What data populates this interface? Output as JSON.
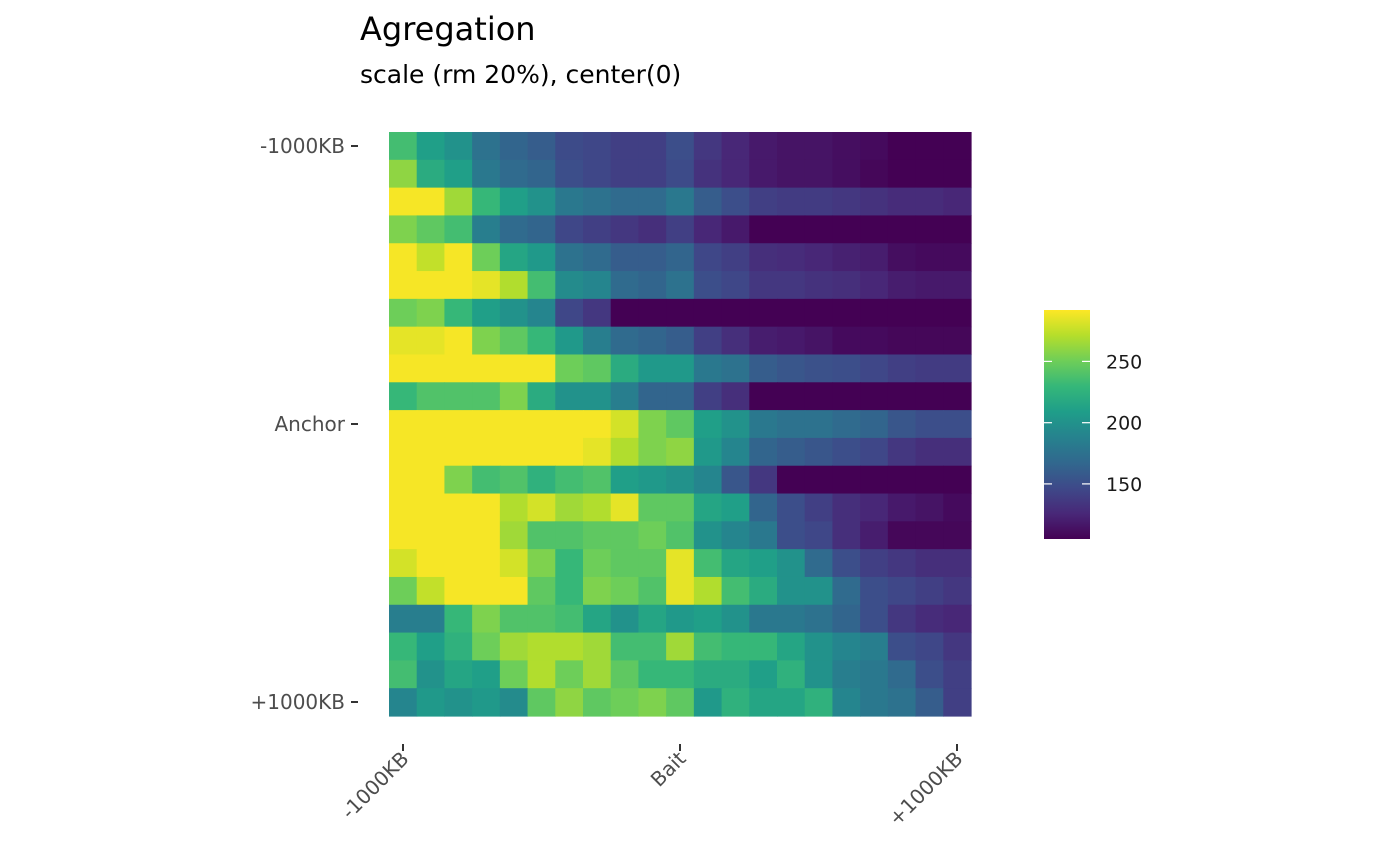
{
  "chart_data": {
    "type": "heatmap",
    "title": "Agregation",
    "subtitle": "scale (rm 20%), center(0)",
    "x_tick_labels": [
      "-1000KB",
      "Bait",
      "+1000KB"
    ],
    "y_tick_labels": [
      "-1000KB",
      "Anchor",
      "+1000KB"
    ],
    "legend": {
      "position": "right",
      "ticks": [
        150,
        200,
        250
      ],
      "min": 105,
      "max": 292
    },
    "colormap": [
      "#440154",
      "#482878",
      "#3e4989",
      "#31688e",
      "#26828e",
      "#1f9e89",
      "#35b779",
      "#6ece58",
      "#b5de2b",
      "#fde725"
    ],
    "grid": false,
    "n_rows": 21,
    "n_cols": 21,
    "values": [
      [
        235,
        210,
        200,
        175,
        165,
        160,
        148,
        145,
        140,
        140,
        150,
        135,
        125,
        118,
        115,
        115,
        112,
        110,
        105,
        105,
        105
      ],
      [
        260,
        220,
        210,
        180,
        170,
        165,
        150,
        145,
        140,
        140,
        148,
        132,
        125,
        118,
        115,
        115,
        112,
        108,
        105,
        105,
        105
      ],
      [
        290,
        290,
        265,
        230,
        210,
        200,
        180,
        175,
        170,
        170,
        180,
        160,
        150,
        140,
        138,
        138,
        135,
        132,
        128,
        128,
        125
      ],
      [
        255,
        245,
        235,
        185,
        170,
        165,
        145,
        140,
        135,
        130,
        140,
        125,
        118,
        105,
        105,
        105,
        105,
        105,
        105,
        105,
        105
      ],
      [
        290,
        275,
        290,
        250,
        215,
        205,
        175,
        170,
        160,
        160,
        165,
        145,
        140,
        130,
        128,
        125,
        122,
        120,
        112,
        110,
        110
      ],
      [
        290,
        290,
        290,
        285,
        270,
        235,
        195,
        190,
        170,
        165,
        175,
        150,
        145,
        135,
        135,
        132,
        130,
        125,
        120,
        118,
        118
      ],
      [
        250,
        255,
        230,
        210,
        200,
        190,
        145,
        135,
        105,
        105,
        105,
        105,
        105,
        105,
        105,
        105,
        105,
        105,
        105,
        105,
        105
      ],
      [
        285,
        285,
        290,
        255,
        245,
        230,
        205,
        185,
        170,
        165,
        160,
        140,
        130,
        120,
        118,
        115,
        110,
        110,
        108,
        108,
        108
      ],
      [
        290,
        290,
        290,
        290,
        290,
        290,
        250,
        245,
        220,
        205,
        205,
        180,
        175,
        160,
        155,
        152,
        150,
        145,
        140,
        138,
        138
      ],
      [
        230,
        240,
        240,
        240,
        255,
        220,
        200,
        200,
        185,
        165,
        165,
        140,
        130,
        105,
        105,
        105,
        105,
        105,
        105,
        105,
        105
      ],
      [
        290,
        290,
        290,
        290,
        290,
        290,
        290,
        290,
        280,
        255,
        245,
        210,
        200,
        180,
        175,
        175,
        170,
        165,
        155,
        150,
        150
      ],
      [
        290,
        290,
        290,
        290,
        290,
        290,
        290,
        285,
        270,
        255,
        260,
        205,
        190,
        165,
        160,
        155,
        150,
        145,
        135,
        130,
        130
      ],
      [
        290,
        290,
        255,
        235,
        240,
        225,
        235,
        240,
        210,
        205,
        200,
        190,
        155,
        135,
        105,
        105,
        105,
        105,
        105,
        105,
        105
      ],
      [
        290,
        290,
        290,
        290,
        270,
        280,
        265,
        270,
        285,
        245,
        245,
        215,
        210,
        165,
        150,
        140,
        130,
        125,
        118,
        115,
        110
      ],
      [
        290,
        290,
        290,
        290,
        265,
        240,
        240,
        245,
        245,
        250,
        240,
        200,
        190,
        180,
        150,
        145,
        130,
        120,
        108,
        108,
        108
      ],
      [
        280,
        290,
        290,
        290,
        280,
        255,
        230,
        250,
        245,
        245,
        285,
        235,
        215,
        210,
        200,
        170,
        150,
        140,
        135,
        130,
        130
      ],
      [
        250,
        275,
        290,
        290,
        290,
        245,
        230,
        255,
        250,
        240,
        285,
        270,
        235,
        220,
        200,
        200,
        170,
        150,
        145,
        140,
        135
      ],
      [
        185,
        185,
        230,
        255,
        240,
        240,
        235,
        215,
        200,
        215,
        205,
        210,
        200,
        180,
        180,
        175,
        165,
        150,
        135,
        128,
        125
      ],
      [
        230,
        210,
        225,
        250,
        265,
        270,
        270,
        265,
        235,
        235,
        265,
        235,
        230,
        230,
        215,
        200,
        190,
        185,
        150,
        145,
        135
      ],
      [
        235,
        200,
        215,
        210,
        250,
        270,
        250,
        265,
        245,
        230,
        230,
        220,
        220,
        210,
        225,
        200,
        185,
        180,
        170,
        150,
        140
      ],
      [
        190,
        205,
        200,
        205,
        195,
        245,
        260,
        245,
        250,
        255,
        245,
        205,
        225,
        215,
        215,
        225,
        190,
        180,
        175,
        160,
        140
      ]
    ]
  }
}
